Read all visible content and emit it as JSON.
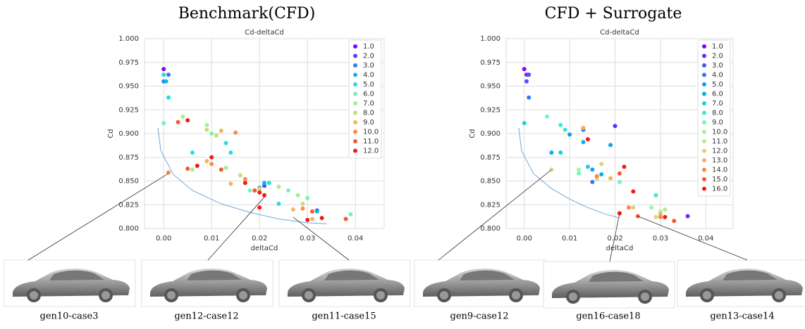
{
  "chart_data": [
    {
      "type": "scatter",
      "title": "Benchmark(CFD)",
      "subtitle": "Cd-deltaCd",
      "x_label": "deltaCd",
      "y_label": "Cd",
      "xlim": [
        -0.004,
        0.046
      ],
      "ylim": [
        0.8,
        1.0
      ],
      "xticks": [
        {
          "value": 0,
          "label": "0.00"
        },
        0.01,
        0.02,
        0.03,
        0.04
      ],
      "yticks": [
        {
          "value": 0.8,
          "label": "0.800"
        },
        0.825,
        {
          "value": 0.85,
          "label": "0.850"
        },
        0.875,
        {
          "value": 0.9,
          "label": "0.900"
        },
        0.925,
        {
          "value": 0.95,
          "label": "0.950"
        },
        0.975,
        {
          "value": 1,
          "label": "1.000"
        }
      ],
      "grid": true,
      "legend": "upper right",
      "front": {
        "color": "#6fa8dc",
        "x": [
          -0.0012,
          -0.0006,
          0.002,
          0.006,
          0.012,
          0.018,
          0.024,
          0.03,
          0.034
        ],
        "y": [
          0.906,
          0.882,
          0.857,
          0.84,
          0.826,
          0.817,
          0.81,
          0.806,
          0.805
        ]
      },
      "series": [
        {
          "name": "1.0",
          "color": "#8000ff",
          "x": [
            0.0
          ],
          "y": [
            0.968
          ]
        },
        {
          "name": "2.0",
          "color": "#5641fd",
          "x": [
            0.021,
            0.032
          ],
          "y": [
            0.845,
            0.819
          ]
        },
        {
          "name": "3.0",
          "color": "#2c7ef8",
          "x": [
            0.001,
            0.0,
            0.02
          ],
          "y": [
            0.962,
            0.955,
            0.843
          ]
        },
        {
          "name": "4.0",
          "color": "#04b9ea",
          "x": [
            0.0005,
            0.021,
            0.032
          ],
          "y": [
            0.955,
            0.848,
            0.818
          ]
        },
        {
          "name": "5.0",
          "color": "#2adddd",
          "x": [
            0.001,
            0.0,
            0.006,
            0.013,
            0.014,
            0.024,
            0.022
          ],
          "y": [
            0.938,
            0.962,
            0.88,
            0.89,
            0.88,
            0.826,
            0.848
          ]
        },
        {
          "name": "6.0",
          "color": "#7ff0b0",
          "x": [
            0.0,
            0.01,
            0.018,
            0.026,
            0.03,
            0.039
          ],
          "y": [
            0.911,
            0.9,
            0.84,
            0.84,
            0.832,
            0.815
          ]
        },
        {
          "name": "7.0",
          "color": "#a6ee94",
          "x": [
            0.004,
            0.009,
            0.013,
            0.006,
            0.024,
            0.028
          ],
          "y": [
            0.918,
            0.909,
            0.864,
            0.862,
            0.844,
            0.835
          ]
        },
        {
          "name": "8.0",
          "color": "#c8dd7a",
          "x": [
            0.009,
            0.011,
            0.016,
            0.02,
            0.029
          ],
          "y": [
            0.904,
            0.898,
            0.856,
            0.842,
            0.826
          ]
        },
        {
          "name": "9.0",
          "color": "#f2b65e",
          "x": [
            0.012,
            0.014,
            0.009,
            0.027,
            0.031
          ],
          "y": [
            0.903,
            0.847,
            0.871,
            0.82,
            0.81
          ]
        },
        {
          "name": "10.0",
          "color": "#fd8c48",
          "x": [
            0.015,
            0.01,
            0.017,
            0.001,
            0.029
          ],
          "y": [
            0.901,
            0.868,
            0.852,
            0.859,
            0.821
          ]
        },
        {
          "name": "11.0",
          "color": "#f6582e",
          "x": [
            0.003,
            0.012,
            0.005,
            0.019,
            0.031,
            0.038
          ],
          "y": [
            0.912,
            0.862,
            0.863,
            0.84,
            0.818,
            0.81
          ]
        },
        {
          "name": "12.0",
          "color": "#f41a14",
          "x": [
            0.005,
            0.01,
            0.007,
            0.02,
            0.02,
            0.021,
            0.03,
            0.033,
            0.017
          ],
          "y": [
            0.914,
            0.875,
            0.866,
            0.822,
            0.838,
            0.835,
            0.809,
            0.811,
            0.848
          ]
        }
      ],
      "annotations": [
        {
          "text": "gen10-case3",
          "x": 0.001,
          "y": 0.858
        },
        {
          "text": "gen12-case12",
          "x": 0.021,
          "y": 0.833
        },
        {
          "text": "gen11-case15",
          "x": 0.027,
          "y": 0.812
        }
      ]
    },
    {
      "type": "scatter",
      "title": "CFD + Surrogate",
      "subtitle": "Cd-deltaCd",
      "x_label": "deltaCd",
      "y_label": "Cd",
      "xlim": [
        -0.004,
        0.046
      ],
      "ylim": [
        0.8,
        1.0
      ],
      "xticks": [
        {
          "value": 0,
          "label": "0.00"
        },
        0.01,
        0.02,
        0.03,
        0.04
      ],
      "yticks": [
        {
          "value": 0.8,
          "label": "0.800"
        },
        0.825,
        {
          "value": 0.85,
          "label": "0.850"
        },
        0.875,
        {
          "value": 0.9,
          "label": "0.900"
        },
        0.925,
        {
          "value": 0.95,
          "label": "0.950"
        },
        0.975,
        {
          "value": 1,
          "label": "1.000"
        }
      ],
      "grid": true,
      "legend": "upper right",
      "front": {
        "color": "#6fa8dc",
        "x": [
          -0.0012,
          -0.0006,
          0.002,
          0.006,
          0.01,
          0.014,
          0.018,
          0.021
        ],
        "y": [
          0.906,
          0.882,
          0.858,
          0.842,
          0.831,
          0.822,
          0.815,
          0.811
        ]
      },
      "series": [
        {
          "name": "1.0",
          "color": "#8000ff",
          "x": [
            0.0
          ],
          "y": [
            0.968
          ]
        },
        {
          "name": "2.0",
          "color": "#6629fe",
          "x": [
            0.0005,
            0.02,
            0.036
          ],
          "y": [
            0.962,
            0.908,
            0.813
          ]
        },
        {
          "name": "3.0",
          "color": "#4c50fc",
          "x": [
            0.001,
            0.0005
          ],
          "y": [
            0.962,
            0.955
          ]
        },
        {
          "name": "4.0",
          "color": "#3277f8",
          "x": [
            0.001,
            0.013,
            0.015
          ],
          "y": [
            0.938,
            0.904,
            0.849
          ]
        },
        {
          "name": "5.0",
          "color": "#189bf1",
          "x": [
            0.01,
            0.015,
            0.019
          ],
          "y": [
            0.899,
            0.862,
            0.888
          ]
        },
        {
          "name": "6.0",
          "color": "#00b5eb",
          "x": [
            0.006,
            0.013,
            0.017
          ],
          "y": [
            0.88,
            0.891,
            0.857
          ]
        },
        {
          "name": "7.0",
          "color": "#1acfe3",
          "x": [
            0.0,
            0.008,
            0.014
          ],
          "y": [
            0.911,
            0.88,
            0.865
          ]
        },
        {
          "name": "8.0",
          "color": "#40e6d0",
          "x": [
            0.008,
            0.009,
            0.029
          ],
          "y": [
            0.909,
            0.904,
            0.835
          ]
        },
        {
          "name": "9.0",
          "color": "#72f6bc",
          "x": [
            0.005,
            0.012,
            0.021
          ],
          "y": [
            0.918,
            0.858,
            0.849
          ]
        },
        {
          "name": "10.0",
          "color": "#9cf6a4",
          "x": [
            0.012,
            0.028,
            0.03
          ],
          "y": [
            0.862,
            0.822,
            0.818
          ]
        },
        {
          "name": "11.0",
          "color": "#c0e88e",
          "x": [
            0.006,
            0.016,
            0.031
          ],
          "y": [
            0.862,
            0.852,
            0.82
          ]
        },
        {
          "name": "12.0",
          "color": "#e2cf78",
          "x": [
            0.017,
            0.024,
            0.029
          ],
          "y": [
            0.868,
            0.822,
            0.812
          ]
        },
        {
          "name": "13.0",
          "color": "#f8ae60",
          "x": [
            0.013,
            0.019,
            0.03
          ],
          "y": [
            0.906,
            0.853,
            0.815
          ]
        },
        {
          "name": "14.0",
          "color": "#fd8447",
          "x": [
            0.016,
            0.023,
            0.03
          ],
          "y": [
            0.855,
            0.822,
            0.812
          ]
        },
        {
          "name": "15.0",
          "color": "#fa5530",
          "x": [
            0.021,
            0.025,
            0.033
          ],
          "y": [
            0.858,
            0.813,
            0.808
          ]
        },
        {
          "name": "16.0",
          "color": "#f41a14",
          "x": [
            0.014,
            0.022,
            0.021,
            0.024,
            0.031
          ],
          "y": [
            0.894,
            0.865,
            0.816,
            0.839,
            0.812
          ]
        }
      ],
      "annotations": [
        {
          "text": "gen9-case12",
          "x": 0.006,
          "y": 0.862
        },
        {
          "text": "gen16-case18",
          "x": 0.021,
          "y": 0.816
        },
        {
          "text": "gen13-case14",
          "x": 0.025,
          "y": 0.813
        }
      ]
    }
  ]
}
